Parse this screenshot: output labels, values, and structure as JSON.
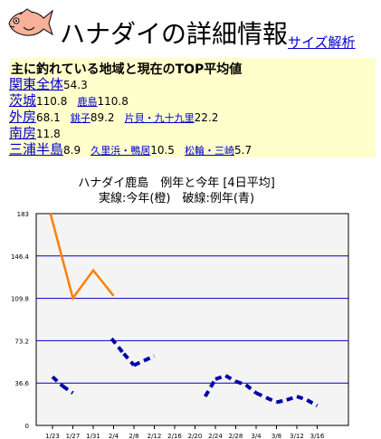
{
  "header": {
    "title": "ハナダイの詳細情報",
    "size_link": "サイズ解析"
  },
  "summary": {
    "heading": "主に釣れている地域と現在のTOP平均値",
    "rows": [
      {
        "area": "関東全体",
        "value": "54.3",
        "subs": []
      },
      {
        "area": "茨城",
        "value": "110.8",
        "subs": [
          {
            "name": "鹿島",
            "value": "110.8"
          }
        ]
      },
      {
        "area": "外房",
        "value": "68.1",
        "subs": [
          {
            "name": "銚子",
            "value": "89.2"
          },
          {
            "name": "片貝・九十九里",
            "value": "22.2"
          }
        ]
      },
      {
        "area": "南房",
        "value": "11.8",
        "subs": []
      },
      {
        "area": "三浦半島",
        "value": "8.9",
        "subs": [
          {
            "name": "久里浜・鴨居",
            "value": "10.5"
          },
          {
            "name": "松輪・三崎",
            "value": "5.7"
          }
        ]
      }
    ]
  },
  "chart_data": {
    "type": "line",
    "title": "ハナダイ鹿島　例年と今年 [4日平均]",
    "subtitle": "実線:今年(橙)　破線:例年(青)",
    "categories": [
      "1/23",
      "1/27",
      "1/31",
      "2/4",
      "2/8",
      "2/12",
      "2/16",
      "2/20",
      "2/24",
      "2/28",
      "3/4",
      "3/8",
      "3/12",
      "3/16"
    ],
    "y_ticks": [
      "183",
      "146.4",
      "109.8",
      "73.2",
      "36.6",
      "0"
    ],
    "ylim": [
      0,
      183
    ],
    "grid": true,
    "series": [
      {
        "name": "今年",
        "color": "#ff8000",
        "style": "solid",
        "points": [
          [
            -0.1,
            183
          ],
          [
            1,
            110
          ],
          [
            2,
            134
          ],
          [
            3,
            112
          ]
        ]
      },
      {
        "name": "例年",
        "color": "#0000aa",
        "style": "dashed",
        "points": [
          [
            0,
            42
          ],
          [
            0.5,
            34
          ],
          [
            1,
            28
          ],
          [
            2.9,
            75
          ],
          [
            3.5,
            62
          ],
          [
            4,
            52
          ],
          [
            4.5,
            56
          ],
          [
            5,
            60
          ],
          [
            7.5,
            25
          ],
          [
            8,
            40
          ],
          [
            8.5,
            43
          ],
          [
            9,
            38
          ],
          [
            9.5,
            35
          ],
          [
            10,
            28
          ],
          [
            10.5,
            24
          ],
          [
            11,
            20
          ],
          [
            11.5,
            22
          ],
          [
            12,
            25
          ],
          [
            12.5,
            22
          ],
          [
            13,
            17
          ]
        ]
      }
    ]
  }
}
